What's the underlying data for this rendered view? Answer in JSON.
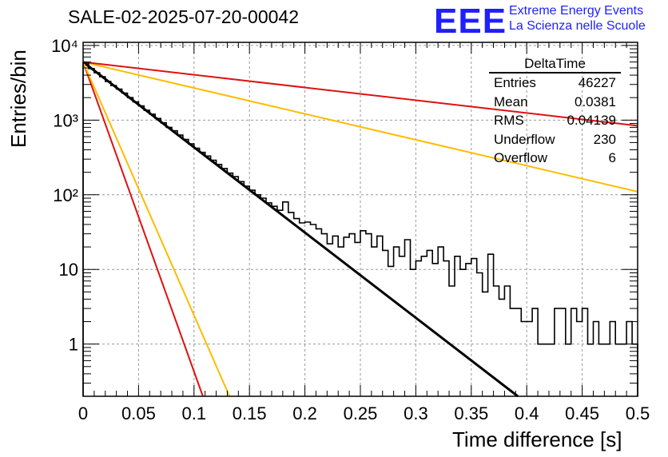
{
  "header": {
    "title": "SALE-02-2025-07-20-00042",
    "brand_logo": "EEE",
    "brand_line1": "Extreme Energy Events",
    "brand_line2": "La Scienza nelle Scuole"
  },
  "stats_box": {
    "title": "DeltaTime",
    "rows": [
      {
        "label": "Entries",
        "value": "46227"
      },
      {
        "label": "Mean",
        "value": "0.0381"
      },
      {
        "label": "RMS",
        "value": "0.04139"
      },
      {
        "label": "Underflow",
        "value": "230"
      },
      {
        "label": "Overflow",
        "value": "6"
      }
    ]
  },
  "colors": {
    "histogram": "#000000",
    "fit": "#000000",
    "red": "#e01010",
    "yellow": "#ffbb00",
    "grid": "#999999"
  },
  "chart_data": {
    "type": "line",
    "xlabel": "Time difference [s]",
    "ylabel": "Entries/bin",
    "xlim": [
      0,
      0.5
    ],
    "ylim": [
      0.2,
      11000
    ],
    "log_y": true,
    "grid": true,
    "legend": "none",
    "x_ticks": [
      0,
      0.05,
      0.1,
      0.15,
      0.2,
      0.25,
      0.3,
      0.35,
      0.4,
      0.45,
      0.5
    ],
    "x_tick_labels": [
      "0",
      "0.05",
      "0.1",
      "0.15",
      "0.2",
      "0.25",
      "0.3",
      "0.35",
      "0.4",
      "0.45",
      "0.5"
    ],
    "y_ticks": [
      1,
      10,
      100,
      1000,
      10000
    ],
    "y_tick_labels": [
      "1",
      "10",
      "10²",
      "10³",
      "10⁴"
    ],
    "histogram": {
      "bin_width": 0.005,
      "counts": [
        5800,
        4900,
        4300,
        3800,
        3300,
        2900,
        2600,
        2300,
        2000,
        1750,
        1550,
        1350,
        1200,
        1050,
        920,
        800,
        720,
        630,
        550,
        480,
        420,
        370,
        330,
        290,
        255,
        225,
        195,
        175,
        150,
        130,
        115,
        100,
        90,
        78,
        70,
        62,
        80,
        58,
        48,
        42,
        43,
        40,
        35,
        30,
        22,
        28,
        20,
        27,
        30,
        23,
        33,
        30,
        20,
        28,
        18,
        11,
        20,
        15,
        25,
        10,
        13,
        15,
        18,
        12,
        20,
        13,
        6,
        15,
        10,
        12,
        14,
        9,
        5,
        16,
        6,
        4,
        6,
        3,
        3,
        2,
        2,
        3,
        1,
        1,
        1,
        3,
        3,
        1,
        3,
        2,
        3,
        1,
        2,
        1,
        1,
        2,
        1,
        1,
        2,
        1
      ]
    },
    "series": [
      {
        "color": "#000000",
        "style": "fit",
        "x": [
          0,
          0.392
        ],
        "y": [
          6000,
          0.2
        ]
      },
      {
        "color": "#e01010",
        "style": "line",
        "x": [
          0,
          0.108
        ],
        "y": [
          6000,
          0.2
        ]
      },
      {
        "color": "#ffbb00",
        "style": "line",
        "x": [
          0,
          0.132
        ],
        "y": [
          6000,
          0.2
        ]
      },
      {
        "color": "#ffbb00",
        "style": "line",
        "x": [
          0,
          0.5
        ],
        "y": [
          6000,
          110
        ]
      },
      {
        "color": "#e01010",
        "style": "line",
        "x": [
          0,
          0.5
        ],
        "y": [
          6000,
          840
        ]
      }
    ]
  }
}
